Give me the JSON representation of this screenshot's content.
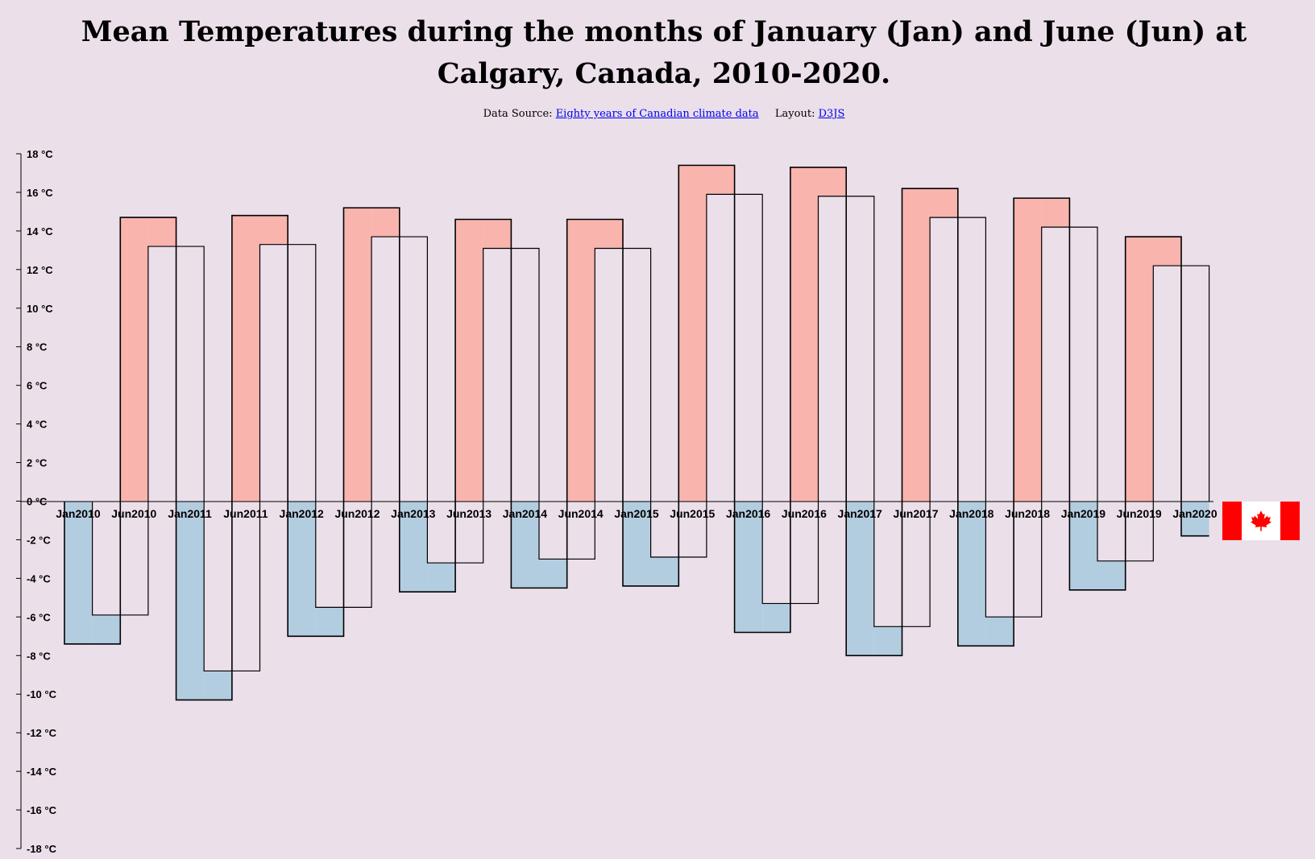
{
  "page": {
    "title_line1": "Mean Temperatures during the months of January (Jan) and June (Jun) at",
    "title_line2": "Calgary, Canada, 2010-2020.",
    "source_prefix": "Data Source:",
    "source_link": "Eighty years of Canadian climate data",
    "layout_prefix": "Layout:",
    "layout_link": "D3JS"
  },
  "colors": {
    "background": "#ebdfea",
    "warm_fill": "#f9b4ae",
    "cold_fill": "#b3cde0",
    "outline": "#000000",
    "flag_red": "#ff0000",
    "flag_white": "#ffffff"
  },
  "icons": {
    "flag": "canada-flag-icon"
  },
  "chart_data": {
    "type": "area",
    "interpolation": "step",
    "unit": "°C",
    "ylim": [
      -18,
      18
    ],
    "yticks": [
      18,
      16,
      14,
      12,
      10,
      8,
      6,
      4,
      2,
      0,
      -2,
      -4,
      -6,
      -8,
      -10,
      -12,
      -14,
      -16,
      -18
    ],
    "categories": [
      "Jan2010",
      "Jun2010",
      "Jan2011",
      "Jun2011",
      "Jan2012",
      "Jun2012",
      "Jan2013",
      "Jun2013",
      "Jan2014",
      "Jun2014",
      "Jan2015",
      "Jun2015",
      "Jan2016",
      "Jun2016",
      "Jan2017",
      "Jun2017",
      "Jan2018",
      "Jun2018",
      "Jan2019",
      "Jun2019",
      "Jan2020"
    ],
    "values": [
      -7.4,
      14.7,
      -10.3,
      14.8,
      -7.0,
      15.2,
      -4.7,
      14.6,
      -4.5,
      14.6,
      -4.4,
      17.4,
      -6.8,
      17.3,
      -8.0,
      16.2,
      -7.5,
      15.7,
      -4.6,
      13.7,
      -1.8
    ],
    "grid": false,
    "legend": "none"
  }
}
